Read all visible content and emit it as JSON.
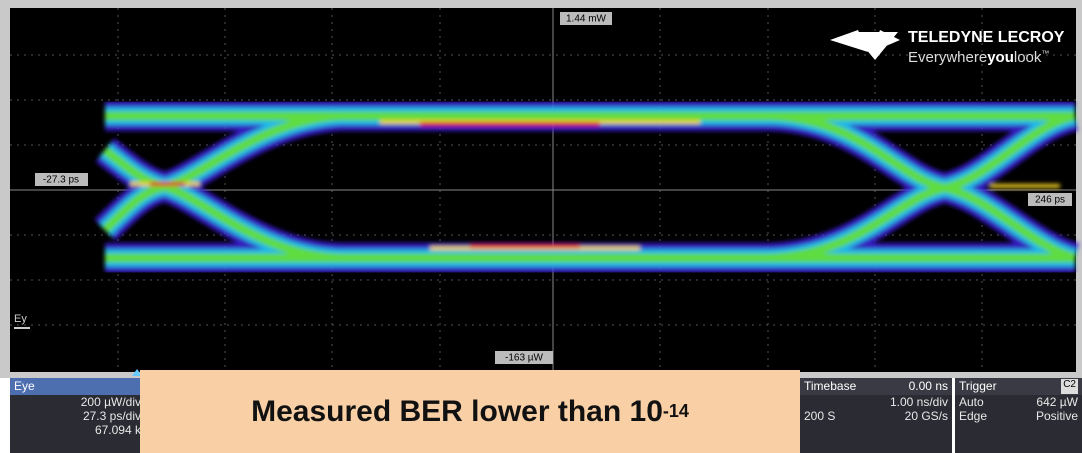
{
  "screen": {
    "markers": {
      "top": "1.44 mW",
      "left": "-27.3 ps",
      "right": "246 ps",
      "bottom": "-163 µW",
      "trace": "Ey"
    },
    "logo": {
      "brand": "TELEDYNE LECROY",
      "tagline_start": "Everywhere",
      "tagline_bold": "you",
      "tagline_end": "look",
      "trademark": "™"
    }
  },
  "panels": {
    "eye": {
      "title": "Eye",
      "lines": [
        "200 µW/div",
        "27.3 ps/div",
        "67.094 k"
      ]
    },
    "timebase": {
      "title": "Timebase",
      "offset": "0.00 ns",
      "lines": [
        "1.00 ns/div"
      ],
      "samples": "200 S",
      "rate": "20 GS/s"
    },
    "trigger": {
      "title": "Trigger",
      "channel": "C2",
      "mode": "Auto",
      "level": "642 µW",
      "type": "Edge",
      "slope": "Positive"
    }
  },
  "banner": {
    "text": "Measured BER lower than 10",
    "exponent": "-14"
  }
}
